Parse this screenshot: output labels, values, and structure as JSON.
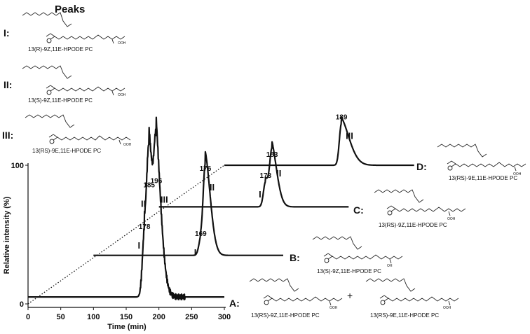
{
  "figure": {
    "heading": "Peaks",
    "peak_key": [
      {
        "roman": "I:",
        "compound": "13(R)-9Z,11E-HPODE PC"
      },
      {
        "roman": "II:",
        "compound": "13(S)-9Z,11E-HPODE PC"
      },
      {
        "roman": "III:",
        "compound": "13(RS)-9E,11E-HPODE PC"
      }
    ],
    "trace_labels": [
      {
        "letter": "A:",
        "compounds": [
          "13(RS)-9Z,11E-HPODE PC",
          "13(RS)-9E,11E-HPODE PC"
        ],
        "joiner": "+"
      },
      {
        "letter": "B:",
        "compounds": [
          "13(S)-9Z,11E-HPODE PC"
        ]
      },
      {
        "letter": "C:",
        "compounds": [
          "13(RS)-9Z,11E-HPODE PC"
        ]
      },
      {
        "letter": "D:",
        "compounds": [
          "13(RS)-9E,11E-HPODE PC"
        ]
      }
    ],
    "struct_labels": {
      "ooh": "OOH",
      "oh": "OH"
    }
  },
  "chart_data": {
    "type": "line",
    "xlabel": "Time (min)",
    "ylabel": "Relative intensity (%)",
    "xlim": [
      0,
      300
    ],
    "ylim": [
      0,
      100
    ],
    "xticks": [
      0,
      50,
      100,
      150,
      200,
      250,
      300
    ],
    "yticks": [
      0,
      100
    ],
    "gradient_line": {
      "style": "dotted",
      "x": [
        0,
        300
      ],
      "y": [
        0,
        100
      ]
    },
    "series": [
      {
        "name": "A",
        "baseline": 5,
        "x_start": 0,
        "x_end": 300,
        "peaks": [
          {
            "label": "I",
            "time": 178,
            "height": 51
          },
          {
            "label": "II",
            "time": 185,
            "height": 81
          },
          {
            "label": "III",
            "time": 196,
            "height": 84
          }
        ]
      },
      {
        "name": "B",
        "baseline": 35,
        "x_start": 100,
        "x_end": 390,
        "peaks": [
          {
            "label": "I",
            "time": 169,
            "height": 46
          },
          {
            "label": "II",
            "time": 176,
            "height": 93
          }
        ]
      },
      {
        "name": "C",
        "baseline": 70,
        "x_start": 200,
        "x_end": 490,
        "peaks": [
          {
            "label": "I",
            "time": 173,
            "height": 88
          },
          {
            "label": "II",
            "time": 183,
            "height": 103
          }
        ]
      },
      {
        "name": "D",
        "baseline": 100,
        "x_start": 300,
        "x_end": 590,
        "peaks": [
          {
            "label": "III",
            "time": 189,
            "height": 130
          }
        ]
      }
    ],
    "peak_time_labels": [
      "178",
      "185",
      "196",
      "169",
      "176",
      "173",
      "183",
      "189"
    ]
  },
  "colors": {
    "ink": "#111111"
  }
}
